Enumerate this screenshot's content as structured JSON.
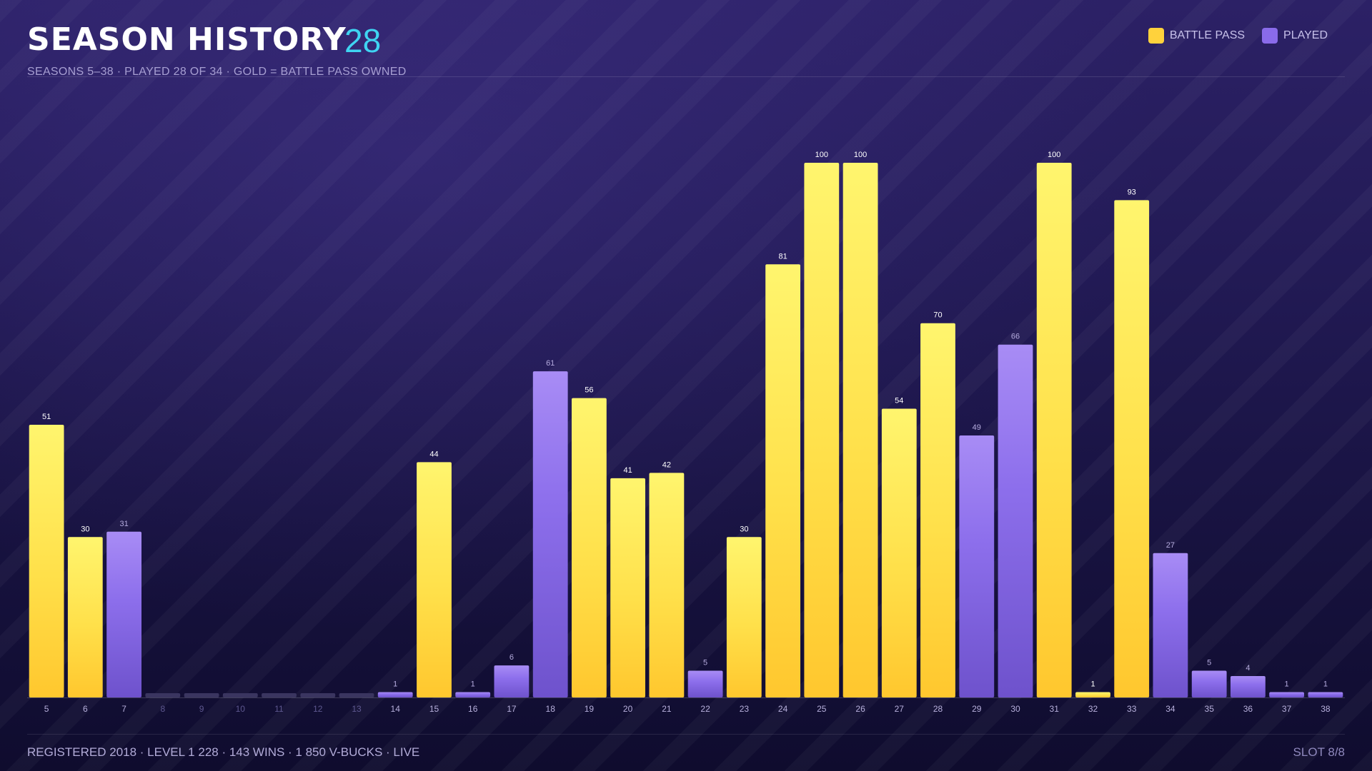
{
  "header": {
    "title": "SEASON HISTORY",
    "count": "28",
    "subtitle": "SEASONS 5–38  ·  PLAYED 28 OF 34  ·  GOLD = BATTLE PASS OWNED"
  },
  "legend": {
    "battle_pass": "BATTLE PASS",
    "played": "PLAYED"
  },
  "footer": {
    "left": "REGISTERED 2018  ·  LEVEL 1 228  ·  143 WINS  ·  1 850 V-BUCKS  ·  LIVE",
    "right": "SLOT 8/8"
  },
  "colors": {
    "battle_pass": "#ffd23c",
    "played": "#8a6bea",
    "accent": "#3fd4f2",
    "empty": "#3a3560"
  },
  "chart_data": {
    "type": "bar",
    "categories": [
      "5",
      "6",
      "7",
      "8",
      "9",
      "10",
      "11",
      "12",
      "13",
      "14",
      "15",
      "16",
      "17",
      "18",
      "19",
      "20",
      "21",
      "22",
      "23",
      "24",
      "25",
      "26",
      "27",
      "28",
      "29",
      "30",
      "31",
      "32",
      "33",
      "34",
      "35",
      "36",
      "37",
      "38"
    ],
    "values": [
      51,
      30,
      31,
      null,
      null,
      null,
      null,
      null,
      null,
      1,
      44,
      1,
      6,
      61,
      56,
      41,
      42,
      5,
      30,
      81,
      100,
      100,
      54,
      70,
      49,
      66,
      100,
      1,
      93,
      27,
      5,
      4,
      1,
      1
    ],
    "battle_pass": [
      true,
      true,
      false,
      false,
      false,
      false,
      false,
      false,
      false,
      false,
      true,
      false,
      false,
      false,
      true,
      true,
      true,
      false,
      true,
      true,
      true,
      true,
      true,
      true,
      false,
      false,
      true,
      true,
      true,
      false,
      false,
      false,
      false,
      false
    ],
    "ylim": [
      0,
      100
    ],
    "grid": false,
    "legend_position": "top-right"
  }
}
